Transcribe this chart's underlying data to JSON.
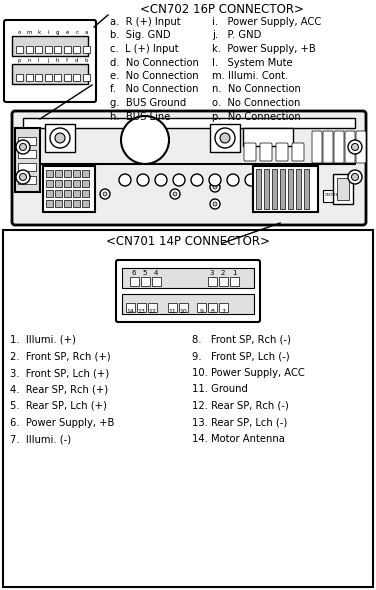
{
  "title_top": "<CN702 16P CONNECTOR>",
  "left_labels_top": [
    "a.  R (+) Input",
    "b.  Sig. GND",
    "c.  L (+) Input",
    "d.  No Connection",
    "e.  No Connection",
    "f.   No Connection",
    "g.  BUS Ground",
    "h.  BUS Line"
  ],
  "right_labels_top": [
    "i.   Power Supply, ACC",
    "j.   P. GND",
    "k.  Power Supply, +B",
    "l.   System Mute",
    "m. Illumi. Cont.",
    "n.  No Connection",
    "o.  No Connection",
    "p.  No Connection"
  ],
  "title_bottom": "<CN701 14P CONNECTOR>",
  "left_labels_bottom": [
    "1.  Illumi. (+)",
    "2.  Front SP, Rch (+)",
    "3.  Front SP, Lch (+)",
    "4.  Rear SP, Rch (+)",
    "5.  Rear SP, Lch (+)",
    "6.  Power Supply, +B",
    "7.  Illumi. (-)"
  ],
  "right_labels_bottom": [
    "8.   Front SP, Rch (-)",
    "9.   Front SP, Lch (-)",
    "10. Power Supply, ACC",
    "11. Ground",
    "12. Rear SP, Rch (-)",
    "13. Rear SP, Lch (-)",
    "14. Motor Antenna"
  ],
  "bg_color": "#ffffff",
  "text_color": "#000000",
  "font_size": 7.2,
  "title_font_size": 8.5
}
